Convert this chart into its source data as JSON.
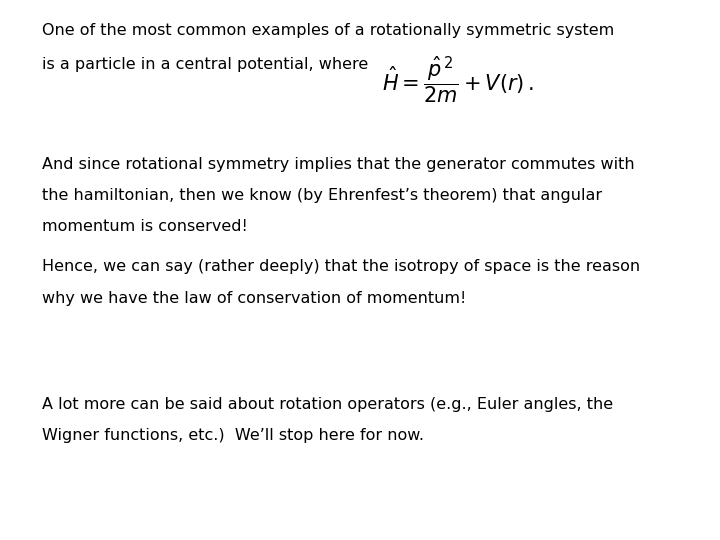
{
  "bg_color": "#ffffff",
  "text_color": "#000000",
  "title_line1": "One of the most common examples of a rotationally symmetric system",
  "title_line2": "is a particle in a central potential, where",
  "formula": "$\\hat{H} = \\dfrac{\\hat{p}^{\\,2}}{2m} + V(r)\\,.$",
  "paragraph1_line1": "And since rotational symmetry implies that the generator commutes with",
  "paragraph1_line2": "the hamiltonian, then we know (by Ehrenfest’s theorem) that angular",
  "paragraph1_line3": "momentum is conserved!",
  "paragraph2_line1": "Hence, we can say (rather deeply) that the isotropy of space is the reason",
  "paragraph2_line2": "why we have the law of conservation of momentum!",
  "paragraph3_line1": "A lot more can be said about rotation operators (e.g., Euler angles, the",
  "paragraph3_line2": "Wigner functions, etc.)  We’ll stop here for now.",
  "font_size_main": 11.5,
  "font_size_formula": 15,
  "font_family": "DejaVu Sans"
}
